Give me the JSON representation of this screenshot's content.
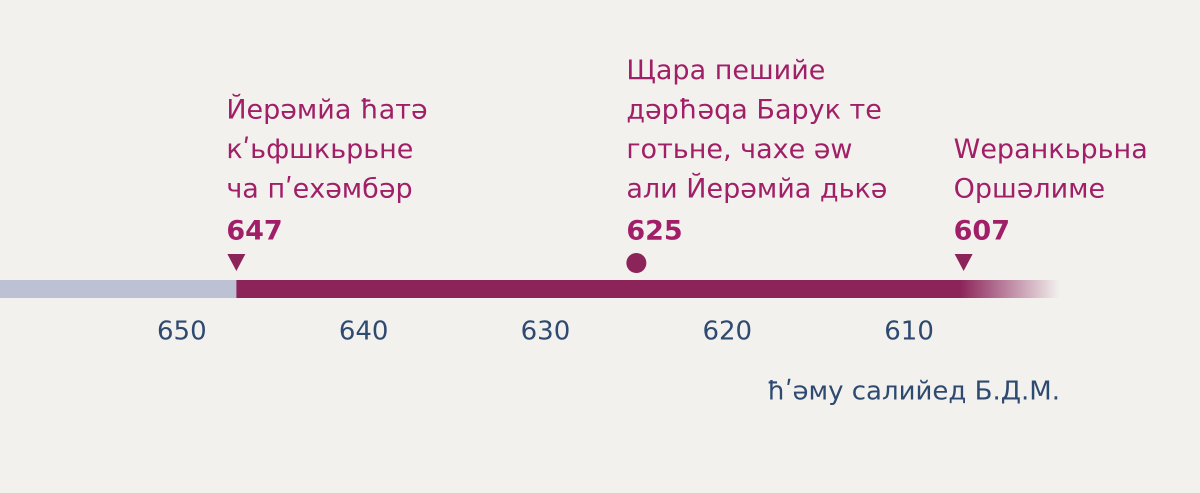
{
  "chart_data": {
    "type": "timeline",
    "axis_label": "ħʹəму салийед Б.Д.М.",
    "xlim": [
      660,
      594
    ],
    "xticks": [
      650,
      640,
      630,
      620,
      610
    ],
    "events": [
      {
        "lines": [
          "Йерəмйа ħатə",
          "кʹьфшкьрьне",
          "ча пʹехəмбəр"
        ],
        "year": 647,
        "marker": "triangle"
      },
      {
        "lines": [
          "Щара пешийе",
          "дəрħəqа Барук те",
          "готьне, чахе əw",
          "али Йерəмйа дькə"
        ],
        "year": 625,
        "marker": "circle"
      },
      {
        "lines": [
          "Wерaнкьрьна",
          "Оршəлиме"
        ],
        "year": 607,
        "marker": "triangle"
      }
    ],
    "color": "#8c245a",
    "before_color": "#bcc2d3",
    "text_color": "#a01f66",
    "axis_color": "#2f4a70"
  }
}
